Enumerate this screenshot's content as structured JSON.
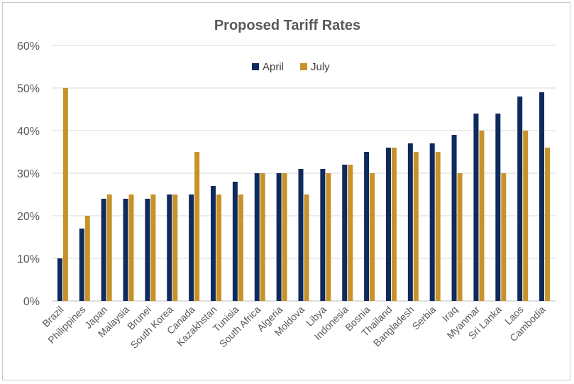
{
  "chart_data": {
    "type": "bar",
    "title": "Proposed Tariff Rates",
    "xlabel": "",
    "ylabel": "",
    "ylim": [
      0,
      60
    ],
    "y_ticks": [
      "0%",
      "10%",
      "20%",
      "30%",
      "40%",
      "50%",
      "60%"
    ],
    "y_tick_values": [
      0,
      10,
      20,
      30,
      40,
      50,
      60
    ],
    "grid": true,
    "legend_position": "top-center",
    "categories": [
      "Brazil",
      "Philippines",
      "Japan",
      "Malaysia",
      "Brunei",
      "South Korea",
      "Canada",
      "Kazakhstan",
      "Tunisia",
      "South Africa",
      "Algeria",
      "Moldova",
      "Libya",
      "Indonesia",
      "Bosnia",
      "Thailand",
      "Bangladesh",
      "Serbia",
      "Iraq",
      "Myanmar",
      "Sri Lanka",
      "Laos",
      "Cambodia"
    ],
    "series": [
      {
        "name": "April",
        "color": "#0f2a5c",
        "values": [
          10,
          17,
          24,
          24,
          24,
          25,
          25,
          27,
          28,
          30,
          30,
          31,
          31,
          32,
          35,
          36,
          37,
          37,
          39,
          44,
          44,
          48,
          49
        ]
      },
      {
        "name": "July",
        "color": "#c8922a",
        "values": [
          50,
          20,
          25,
          25,
          25,
          25,
          35,
          25,
          25,
          30,
          30,
          25,
          30,
          32,
          30,
          36,
          35,
          35,
          30,
          40,
          30,
          40,
          36
        ]
      }
    ]
  }
}
